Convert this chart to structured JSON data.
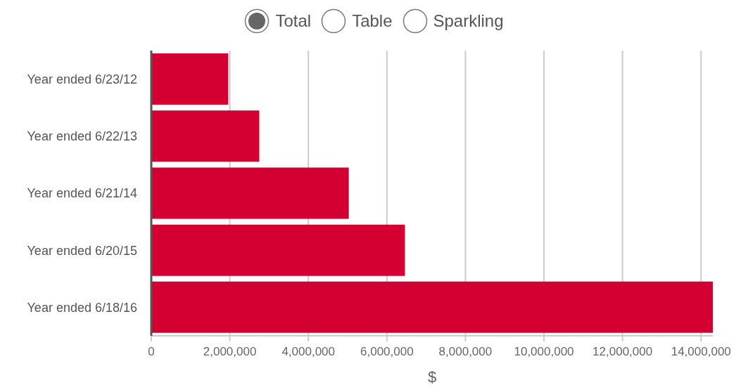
{
  "chart_data": {
    "type": "bar",
    "orientation": "horizontal",
    "xlabel": "$",
    "categories": [
      "Year ended 6/23/12",
      "Year ended 6/22/13",
      "Year ended 6/21/14",
      "Year ended 6/20/15",
      "Year ended 6/18/16"
    ],
    "values": [
      1960000,
      2750000,
      5030000,
      6460000,
      14300000
    ],
    "color": "#d50032",
    "xlim": [
      0,
      14300000
    ],
    "xticks": [
      0,
      {
        "value": 2000000,
        "label": "2,000,000"
      },
      {
        "value": 4000000,
        "label": "4,000,000"
      },
      {
        "value": 6000000,
        "label": "6,000,000"
      },
      {
        "value": 8000000,
        "label": "8,000,000"
      },
      {
        "value": 10000000,
        "label": "10,000,000"
      },
      {
        "value": 12000000,
        "label": "12,000,000"
      },
      {
        "value": 14000000,
        "label": "14,000,000"
      }
    ],
    "grid": "x",
    "annotations": [
      "Total",
      "Table",
      "Sparkling"
    ]
  }
}
